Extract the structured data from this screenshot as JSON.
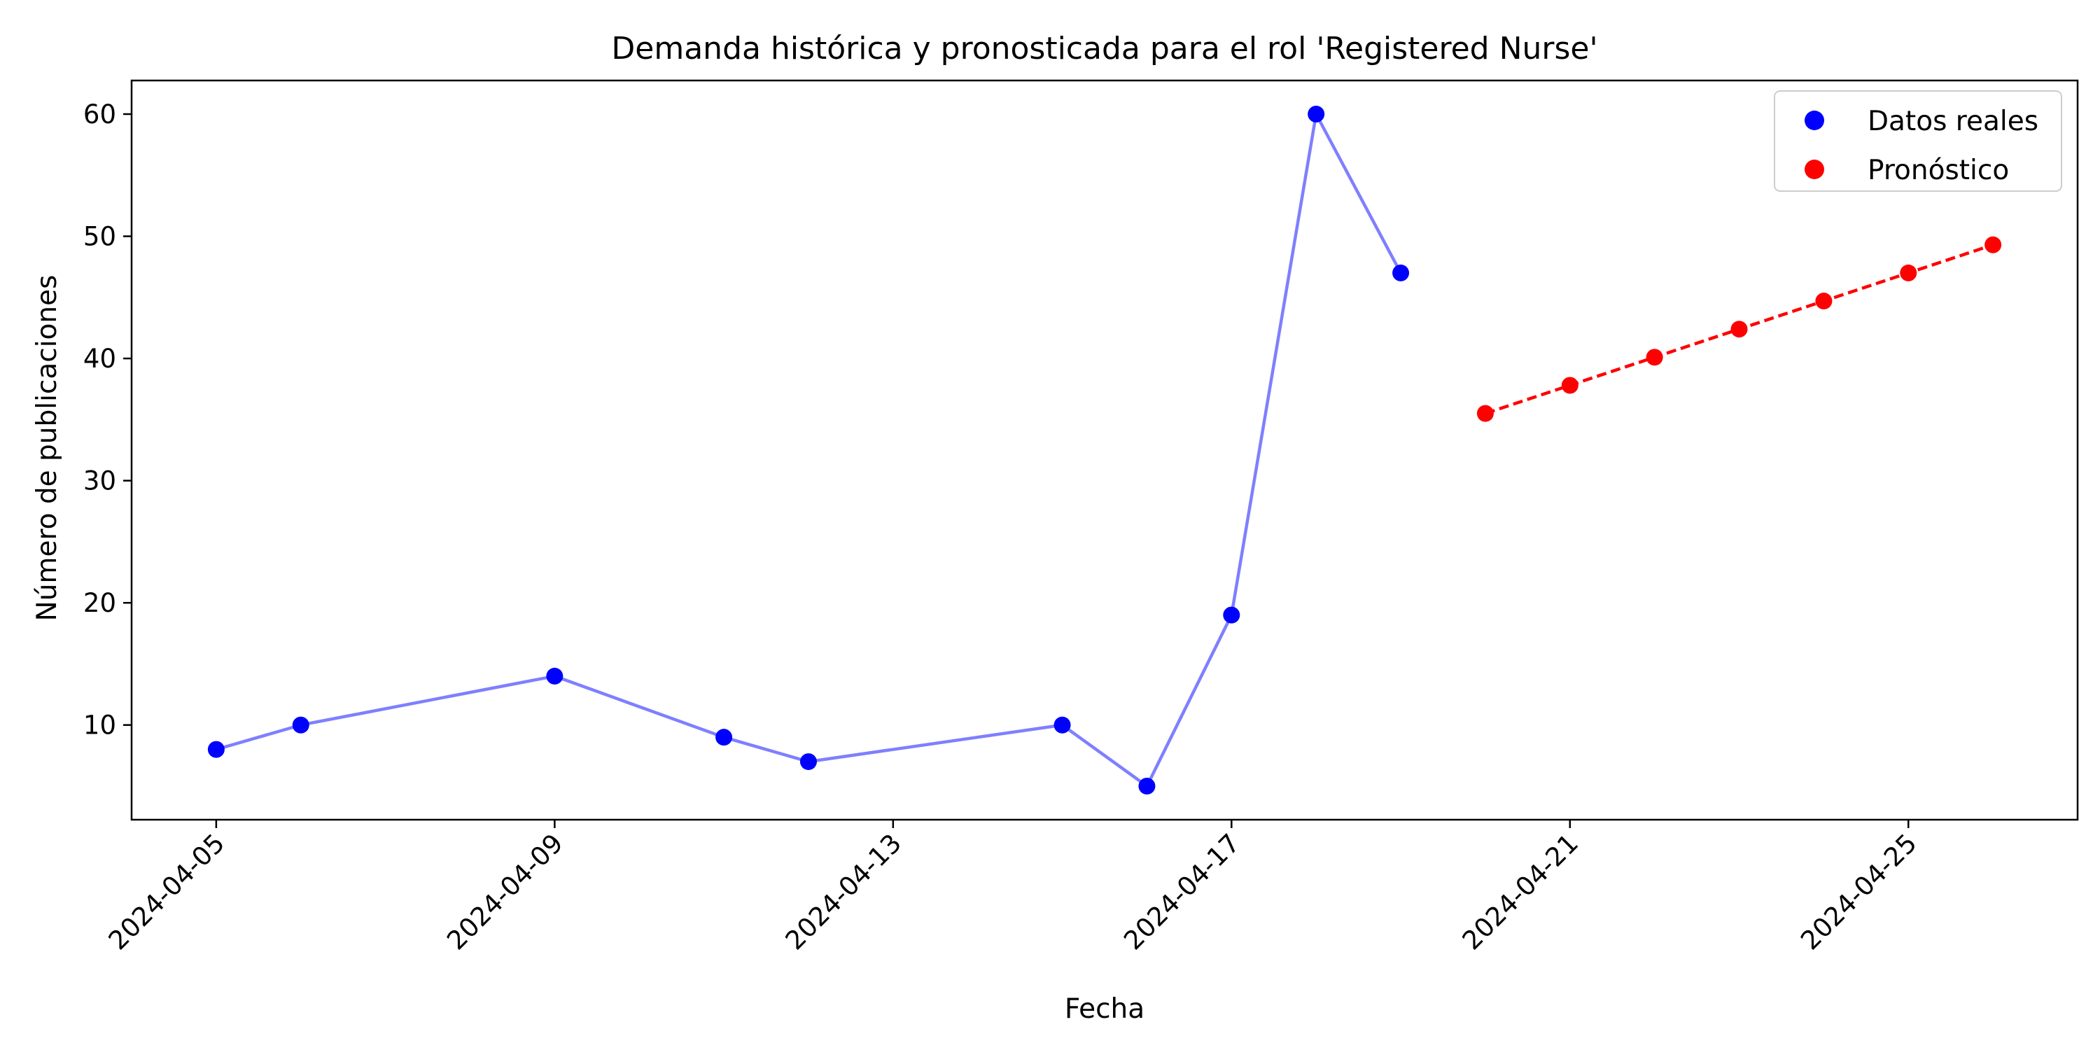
{
  "chart_data": {
    "type": "line",
    "title": "Demanda histórica y pronosticada para el rol 'Registered Nurse'",
    "xlabel": "Fecha",
    "ylabel": "Número de publicaciones",
    "x_ticks": [
      "2024-04-05",
      "2024-04-09",
      "2024-04-13",
      "2024-04-17",
      "2024-04-21",
      "2024-04-25"
    ],
    "y_ticks": [
      10,
      20,
      30,
      40,
      50,
      60
    ],
    "xlim": [
      "2024-04-04",
      "2024-04-27"
    ],
    "ylim": [
      2.25,
      62.75
    ],
    "grid": false,
    "legend_position": "top-right",
    "series": [
      {
        "name": "Datos reales",
        "color": "#0000ff",
        "line_color": "#7f7fff",
        "line_style": "solid",
        "points": [
          {
            "x": "2024-04-05",
            "y": 8
          },
          {
            "x": "2024-04-06",
            "y": 10
          },
          {
            "x": "2024-04-09",
            "y": 14
          },
          {
            "x": "2024-04-11",
            "y": 9
          },
          {
            "x": "2024-04-12",
            "y": 7
          },
          {
            "x": "2024-04-15",
            "y": 10
          },
          {
            "x": "2024-04-16",
            "y": 5
          },
          {
            "x": "2024-04-17",
            "y": 19
          },
          {
            "x": "2024-04-18",
            "y": 60
          },
          {
            "x": "2024-04-19",
            "y": 47
          }
        ]
      },
      {
        "name": "Pronóstico",
        "color": "#ff0000",
        "line_color": "#ff0000",
        "line_style": "dashed",
        "points": [
          {
            "x": "2024-04-20",
            "y": 35.5
          },
          {
            "x": "2024-04-21",
            "y": 37.8
          },
          {
            "x": "2024-04-22",
            "y": 40.1
          },
          {
            "x": "2024-04-23",
            "y": 42.4
          },
          {
            "x": "2024-04-24",
            "y": 44.7
          },
          {
            "x": "2024-04-25",
            "y": 47.0
          },
          {
            "x": "2024-04-26",
            "y": 49.3
          }
        ]
      }
    ]
  }
}
